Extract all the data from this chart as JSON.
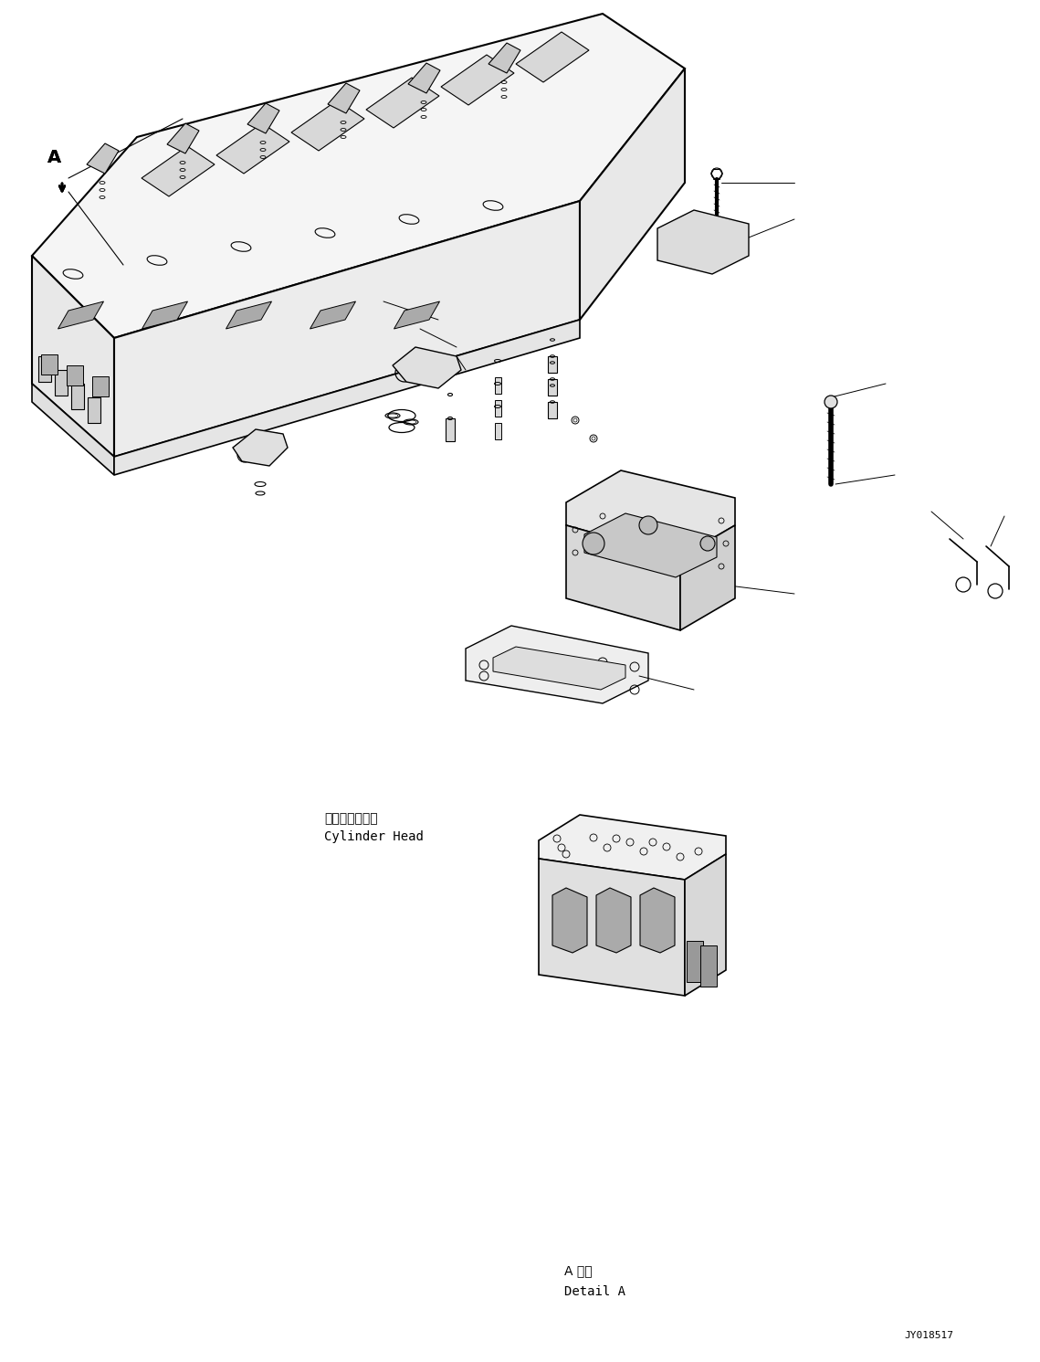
{
  "background_color": "#ffffff",
  "fig_width": 11.39,
  "fig_height": 14.91,
  "dpi": 100,
  "label_A": "A",
  "text_japanese_cylinder": "シリンダヘッド",
  "text_english_cylinder": "Cylinder Head",
  "text_detail_japanese": "A 詳細",
  "text_detail_english": "Detail A",
  "text_drawing_number": "JY018517",
  "line_color": "#000000",
  "text_color": "#000000",
  "font_size_labels": 9,
  "font_size_drawing_no": 8
}
